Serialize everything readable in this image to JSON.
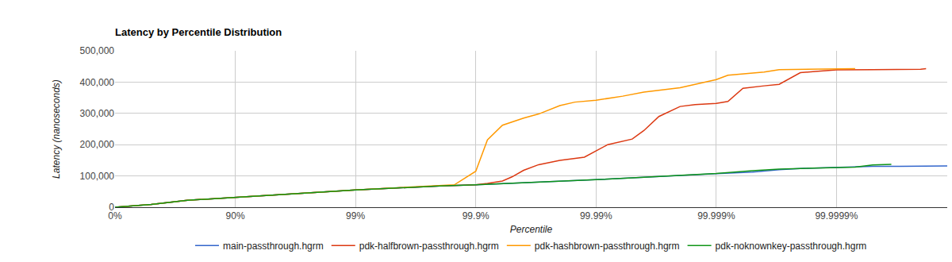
{
  "chart_data": {
    "type": "line",
    "title": "Latency by Percentile Distribution",
    "x_label": "Percentile",
    "y_label": "Latency (nanoseconds)",
    "grid": true,
    "legend": "bottom",
    "xlim": [
      0,
      99.999988
    ],
    "xticks": [
      {
        "value": 0,
        "label": "0%"
      },
      {
        "value": 90,
        "label": "90%"
      },
      {
        "value": 99,
        "label": "99%"
      },
      {
        "value": 99.9,
        "label": "99.9%"
      },
      {
        "value": 99.99,
        "label": "99.99%"
      },
      {
        "value": 99.999,
        "label": "99.999%"
      },
      {
        "value": 99.9999,
        "label": "99.9999%"
      }
    ],
    "ylim": [
      0,
      500000
    ],
    "yticks": [
      0,
      {
        "value": 100000,
        "label": "100,000"
      },
      {
        "value": 200000,
        "label": "200,000"
      },
      {
        "value": 300000,
        "label": "300,000"
      },
      {
        "value": 400000,
        "label": "400,000"
      },
      {
        "value": 500000,
        "label": "500,000"
      }
    ],
    "series": [
      {
        "name": "main-passthrough.hgrm",
        "color": "#3366cc",
        "x": [
          0,
          50,
          75,
          90,
          95,
          97,
          99,
          99.5,
          99.7,
          99.8,
          99.9,
          99.95,
          99.98,
          99.99,
          99.995,
          99.998,
          99.999,
          99.9995,
          99.9997,
          99.9998,
          99.9999,
          99.99995,
          99.99997,
          99.999988
        ],
        "values": [
          0,
          9000,
          22000,
          32000,
          40000,
          44000,
          55000,
          61000,
          65000,
          68000,
          72000,
          77000,
          82000,
          88000,
          94000,
          102000,
          107000,
          112000,
          120000,
          124000,
          128000,
          131000,
          131000,
          132000
        ]
      },
      {
        "name": "pdk-halfbrown-passthrough.hgrm",
        "color": "#dc3912",
        "x": [
          0,
          50,
          75,
          90,
          95,
          97,
          99,
          99.5,
          99.7,
          99.8,
          99.9,
          99.92,
          99.94,
          99.95,
          99.96,
          99.97,
          99.98,
          99.985,
          99.9875,
          99.992,
          99.994,
          99.995,
          99.996,
          99.997,
          99.998,
          99.9985,
          99.999,
          99.9992,
          99.9994,
          99.9995,
          99.9996,
          99.9997,
          99.9998,
          99.99985,
          99.9999,
          99.99995,
          99.99997,
          99.99998,
          99.999982
        ],
        "values": [
          0,
          9000,
          22000,
          32000,
          40000,
          44000,
          55000,
          61000,
          65000,
          68000,
          72000,
          76000,
          84000,
          97000,
          118000,
          136000,
          150000,
          155000,
          160000,
          200000,
          210000,
          218000,
          245000,
          290000,
          322000,
          328000,
          332000,
          338000,
          380000,
          384000,
          388000,
          393000,
          430000,
          434000,
          439000,
          440000,
          440000,
          441000,
          443000
        ]
      },
      {
        "name": "pdk-hashbrown-passthrough.hgrm",
        "color": "#ff9900",
        "x": [
          0,
          50,
          75,
          90,
          95,
          97,
          99,
          99.5,
          99.7,
          99.8,
          99.85,
          99.9,
          99.92,
          99.94,
          99.95,
          99.96,
          99.97,
          99.98,
          99.985,
          99.99,
          99.994,
          99.996,
          99.998,
          99.999,
          99.9992,
          99.9995,
          99.9996,
          99.9997,
          99.99985,
          99.99993
        ],
        "values": [
          0,
          9000,
          22000,
          32000,
          40000,
          44000,
          55000,
          61000,
          65000,
          68000,
          72000,
          115000,
          215000,
          262000,
          272000,
          285000,
          298000,
          325000,
          336000,
          342000,
          355000,
          368000,
          382000,
          408000,
          422000,
          428000,
          432000,
          440000,
          442000,
          443000
        ]
      },
      {
        "name": "pdk-noknownkey-passthrough.hgrm",
        "color": "#109618",
        "x": [
          0,
          50,
          75,
          90,
          95,
          97,
          99,
          99.5,
          99.7,
          99.8,
          99.9,
          99.95,
          99.98,
          99.99,
          99.995,
          99.998,
          99.999,
          99.9995,
          99.9997,
          99.9998,
          99.9999,
          99.99993,
          99.99995,
          99.999965
        ],
        "values": [
          0,
          9000,
          22000,
          32000,
          40000,
          44000,
          55000,
          61000,
          65000,
          68000,
          72000,
          77000,
          82000,
          88000,
          94000,
          102000,
          108000,
          117000,
          122000,
          124000,
          126000,
          128000,
          135000,
          137000
        ]
      }
    ]
  }
}
